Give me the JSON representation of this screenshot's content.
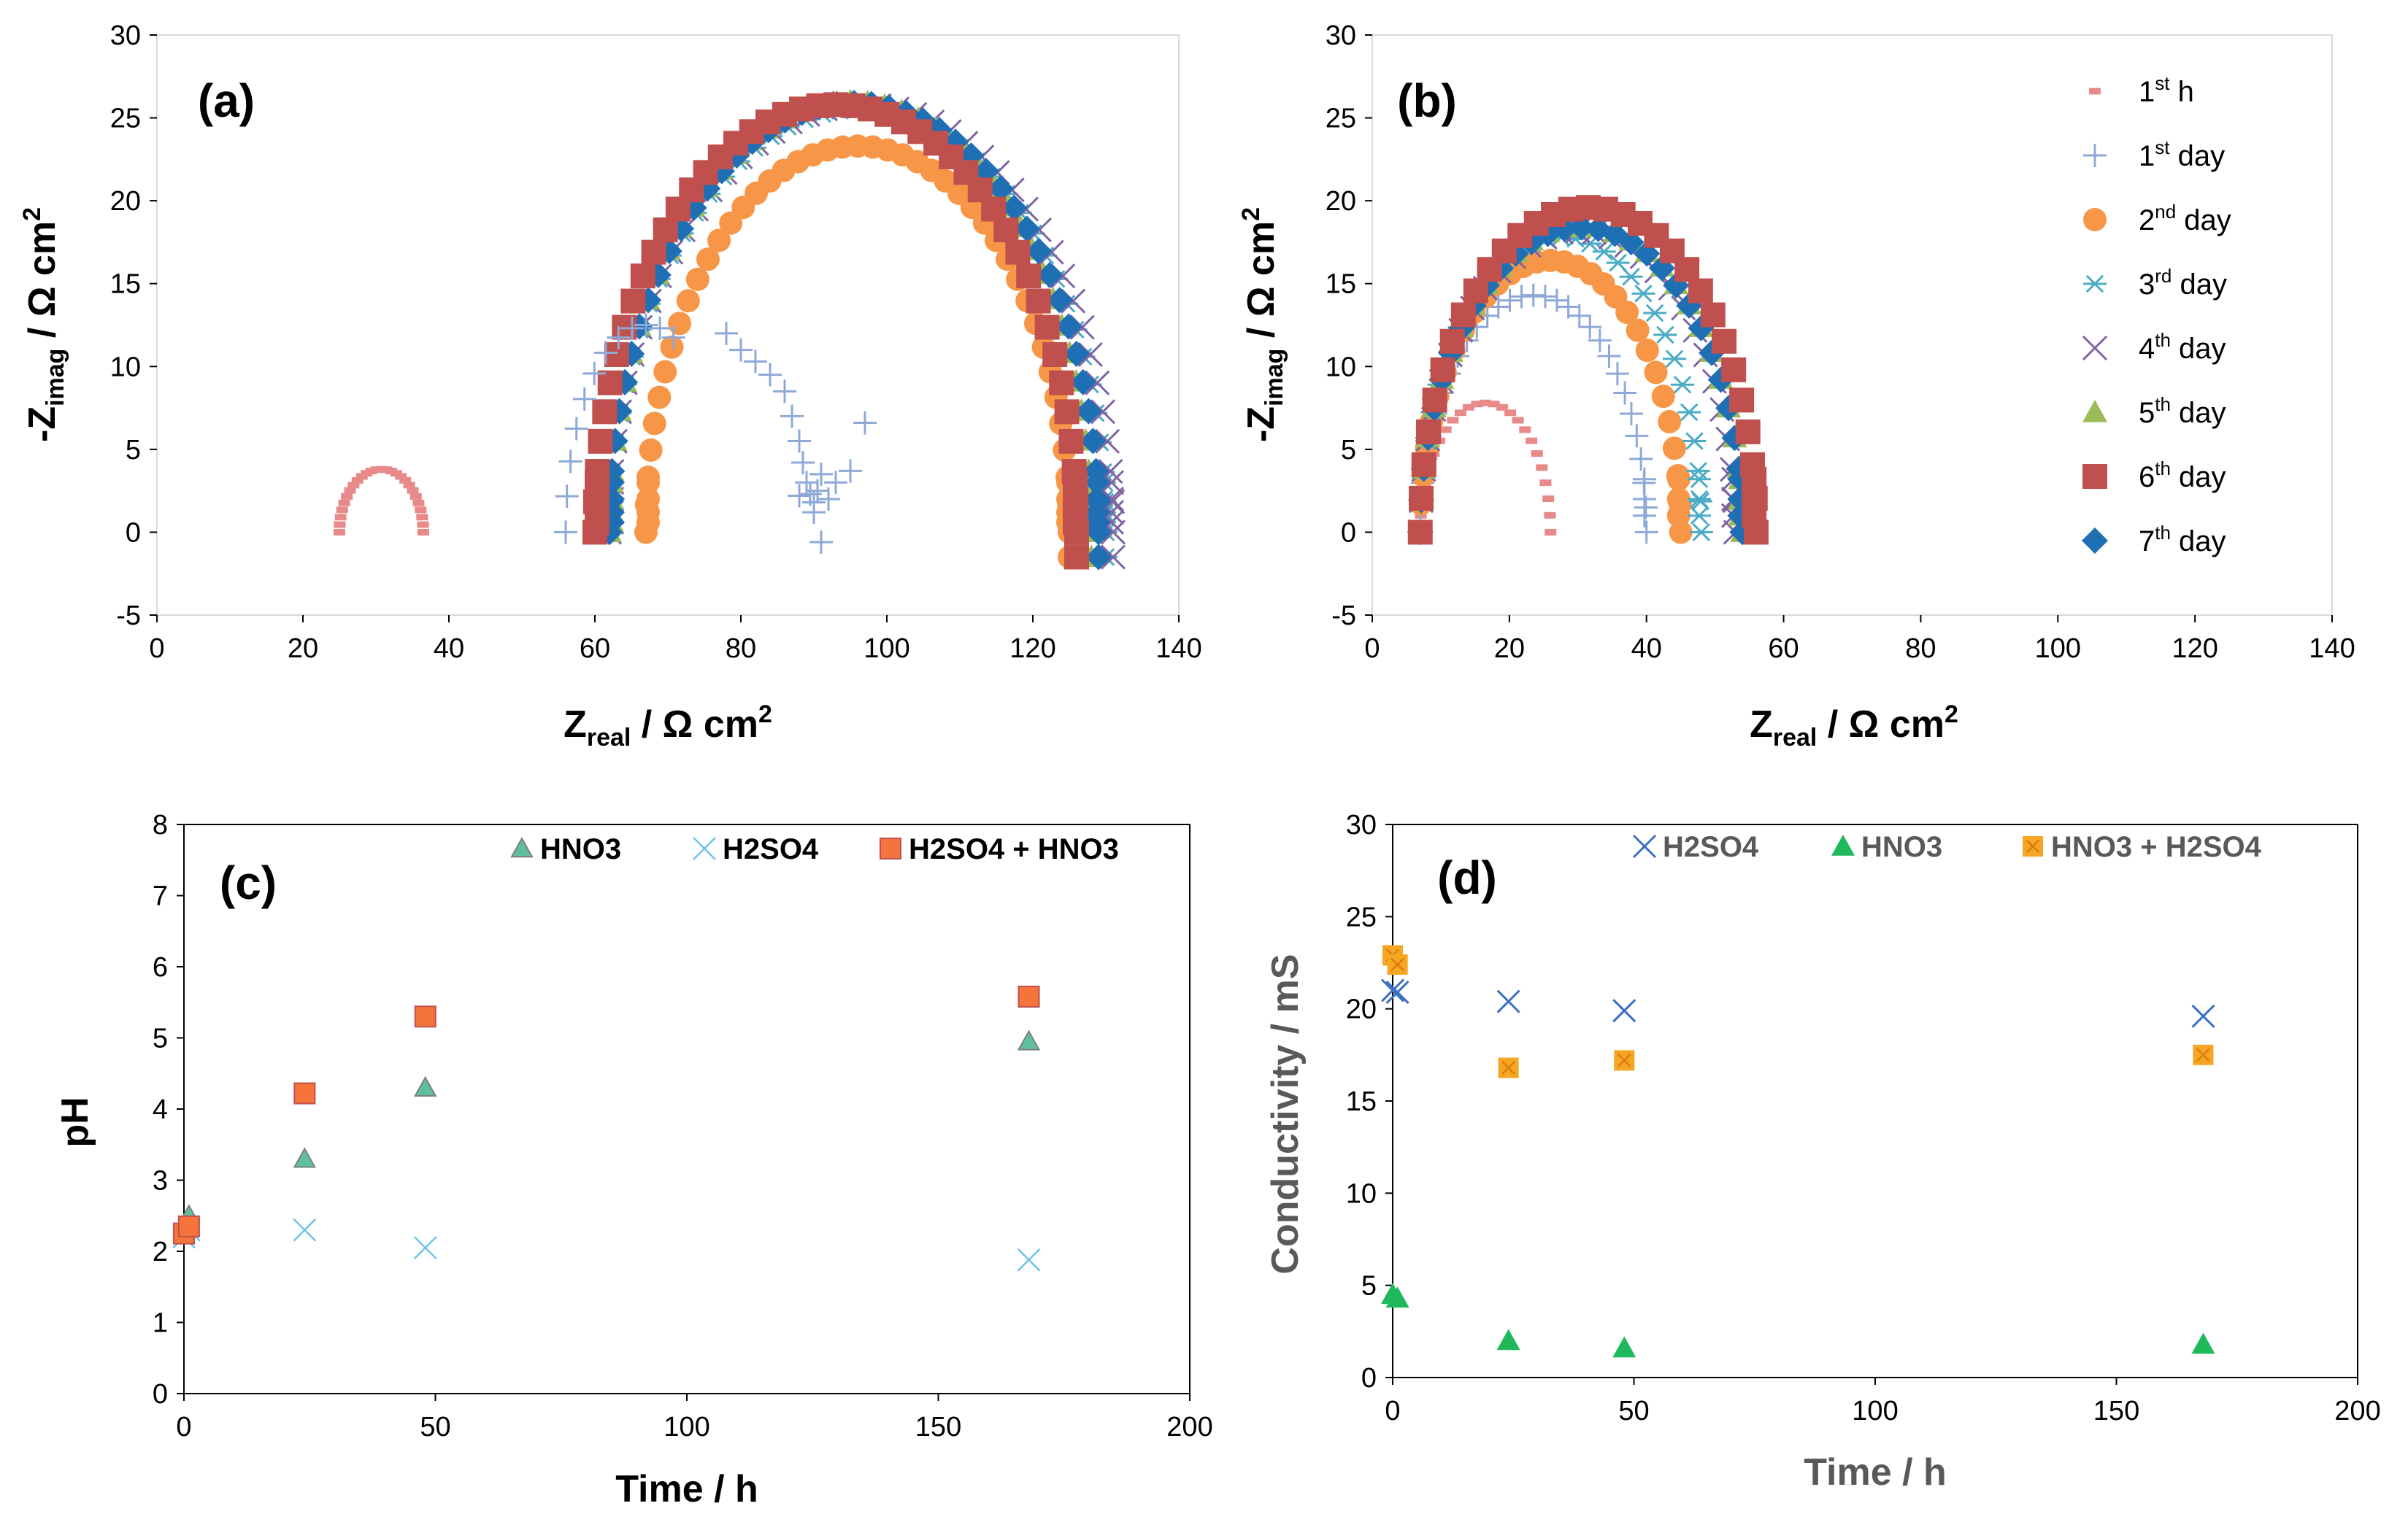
{
  "chart_data": [
    {
      "panel": "a",
      "type": "scatter",
      "label": "(a)",
      "xlabel": "Z",
      "xlabel_sub": "real",
      "xlabel_unit": " / Ω cm",
      "xlabel_sup": "2",
      "ylabel": "-Z",
      "ylabel_sub": "imag",
      "ylabel_unit": " / Ω cm",
      "ylabel_sup": "2",
      "xlim": [
        0,
        140
      ],
      "ylim": [
        -5,
        30
      ],
      "xticks": [
        "0",
        "20",
        "40",
        "60",
        "80",
        "100",
        "120",
        "140"
      ],
      "yticks": [
        "-5",
        "0",
        "5",
        "10",
        "15",
        "20",
        "25",
        "30"
      ],
      "grid": false,
      "arcs": [
        {
          "series": "1st h",
          "x_start": 25,
          "x_end": 36.5,
          "peak": 3.8
        },
        {
          "series": "2nd day",
          "x_start": 67,
          "x_end": 125,
          "peak": 23.3
        },
        {
          "series": "3rd day",
          "x_start": 62,
          "x_end": 130,
          "peak": 25.5
        },
        {
          "series": "4th day",
          "x_start": 62,
          "x_end": 131,
          "peak": 25.8
        },
        {
          "series": "5th day",
          "x_start": 62,
          "x_end": 128,
          "peak": 26.0
        },
        {
          "series": "6th day",
          "x_start": 60,
          "x_end": 126,
          "peak": 25.8
        },
        {
          "series": "7th day",
          "x_start": 62,
          "x_end": 129,
          "peak": 25.9
        }
      ],
      "day1_arc": {
        "x_start": 56,
        "x_end": 78,
        "peak": 12.5
      },
      "day1_tail": [
        [
          78,
          12.0
        ],
        [
          80,
          11.0
        ],
        [
          82,
          10.3
        ],
        [
          84,
          9.5
        ],
        [
          86,
          8.5
        ],
        [
          87,
          7.0
        ],
        [
          88,
          5.5
        ],
        [
          88.5,
          4.2
        ],
        [
          89,
          3.0
        ],
        [
          89.5,
          2.3
        ],
        [
          90,
          1.8
        ],
        [
          90.5,
          2.5
        ],
        [
          91,
          3.5
        ],
        [
          92,
          2.0
        ],
        [
          93,
          3.0
        ],
        [
          95,
          3.7
        ],
        [
          97,
          6.6
        ],
        [
          91,
          -0.6
        ],
        [
          88,
          2.2
        ],
        [
          90,
          1.2
        ]
      ]
    },
    {
      "panel": "b",
      "type": "scatter",
      "label": "(b)",
      "xlabel": "Z",
      "xlabel_sub": "real",
      "xlabel_unit": " / Ω cm",
      "xlabel_sup": "2",
      "ylabel": "-Z",
      "ylabel_sub": "imag",
      "ylabel_unit": " / Ω cm",
      "ylabel_sup": "2",
      "xlim": [
        0,
        140
      ],
      "ylim": [
        -5,
        30
      ],
      "xticks": [
        "0",
        "20",
        "40",
        "60",
        "80",
        "100",
        "120",
        "140"
      ],
      "yticks": [
        "-5",
        "0",
        "5",
        "10",
        "15",
        "20",
        "25",
        "30"
      ],
      "grid": false,
      "legend": [
        {
          "series": "1st h",
          "num": "1",
          "sup": "st",
          "word": " h"
        },
        {
          "series": "1st day",
          "num": "1",
          "sup": "st",
          "word": " day"
        },
        {
          "series": "2nd day",
          "num": "2",
          "sup": "nd",
          "word": " day"
        },
        {
          "series": "3rd day",
          "num": "3",
          "sup": "rd",
          "word": " day"
        },
        {
          "series": "4th day",
          "num": "4",
          "sup": "th",
          "word": " day"
        },
        {
          "series": "5th day",
          "num": "5",
          "sup": "th",
          "word": " day"
        },
        {
          "series": "6th day",
          "num": "6",
          "sup": "th",
          "word": " day"
        },
        {
          "series": "7th day",
          "num": "7",
          "sup": "th",
          "word": " day"
        }
      ],
      "arcs": [
        {
          "series": "1st h",
          "x_start": 7,
          "x_end": 26,
          "peak": 7.8
        },
        {
          "series": "1st day",
          "x_start": 7,
          "x_end": 40,
          "peak": 14.3
        },
        {
          "series": "2nd day",
          "x_start": 7,
          "x_end": 45,
          "peak": 16.4
        },
        {
          "series": "3rd day",
          "x_start": 7,
          "x_end": 48,
          "peak": 17.8
        },
        {
          "series": "4th day",
          "x_start": 7,
          "x_end": 53,
          "peak": 18.2
        },
        {
          "series": "5th day",
          "x_start": 7,
          "x_end": 54,
          "peak": 18.5
        },
        {
          "series": "6th day",
          "x_start": 7,
          "x_end": 56,
          "peak": 19.6
        },
        {
          "series": "7th day",
          "x_start": 7,
          "x_end": 54,
          "peak": 18.4
        }
      ]
    },
    {
      "panel": "c",
      "type": "scatter",
      "label": "(c)",
      "xlabel": "Time / h",
      "ylabel": "pH",
      "xlim": [
        0,
        200
      ],
      "ylim": [
        0,
        8
      ],
      "xticks": [
        "0",
        "50",
        "100",
        "150",
        "200"
      ],
      "yticks": [
        "0",
        "1",
        "2",
        "3",
        "4",
        "5",
        "6",
        "7",
        "8"
      ],
      "grid": false,
      "legend_position": "top",
      "series": [
        {
          "name": "HNO3",
          "x": [
            0,
            1,
            24,
            48,
            168
          ],
          "y": [
            2.3,
            2.5,
            3.3,
            4.3,
            4.95
          ]
        },
        {
          "name": "H2SO4",
          "x": [
            0,
            1,
            24,
            48,
            168
          ],
          "y": [
            2.2,
            2.3,
            2.3,
            2.05,
            1.88
          ]
        },
        {
          "name": "H2SO4 + HNO3",
          "x": [
            0,
            1,
            24,
            48,
            168
          ],
          "y": [
            2.25,
            2.35,
            4.22,
            5.3,
            5.58
          ]
        }
      ]
    },
    {
      "panel": "d",
      "type": "scatter",
      "label": "(d)",
      "xlabel": "Time / h",
      "ylabel": "Conductivity / mS",
      "xlim": [
        0,
        200
      ],
      "ylim": [
        0,
        30
      ],
      "xticks": [
        "0",
        "50",
        "100",
        "150",
        "200"
      ],
      "yticks": [
        "0",
        "5",
        "10",
        "15",
        "20",
        "25",
        "30"
      ],
      "grid": false,
      "legend_position": "top",
      "series": [
        {
          "name": "H2SO4",
          "x": [
            0,
            1,
            24,
            48,
            168
          ],
          "y": [
            21.0,
            20.9,
            20.4,
            19.9,
            19.6
          ]
        },
        {
          "name": "HNO3",
          "x": [
            0,
            1,
            24,
            48,
            168
          ],
          "y": [
            4.5,
            4.3,
            2.0,
            1.6,
            1.8
          ]
        },
        {
          "name": "HNO3 + H2SO4",
          "x": [
            0,
            1,
            24,
            48,
            168
          ],
          "y": [
            22.9,
            22.4,
            16.8,
            17.2,
            17.5
          ]
        }
      ]
    }
  ]
}
